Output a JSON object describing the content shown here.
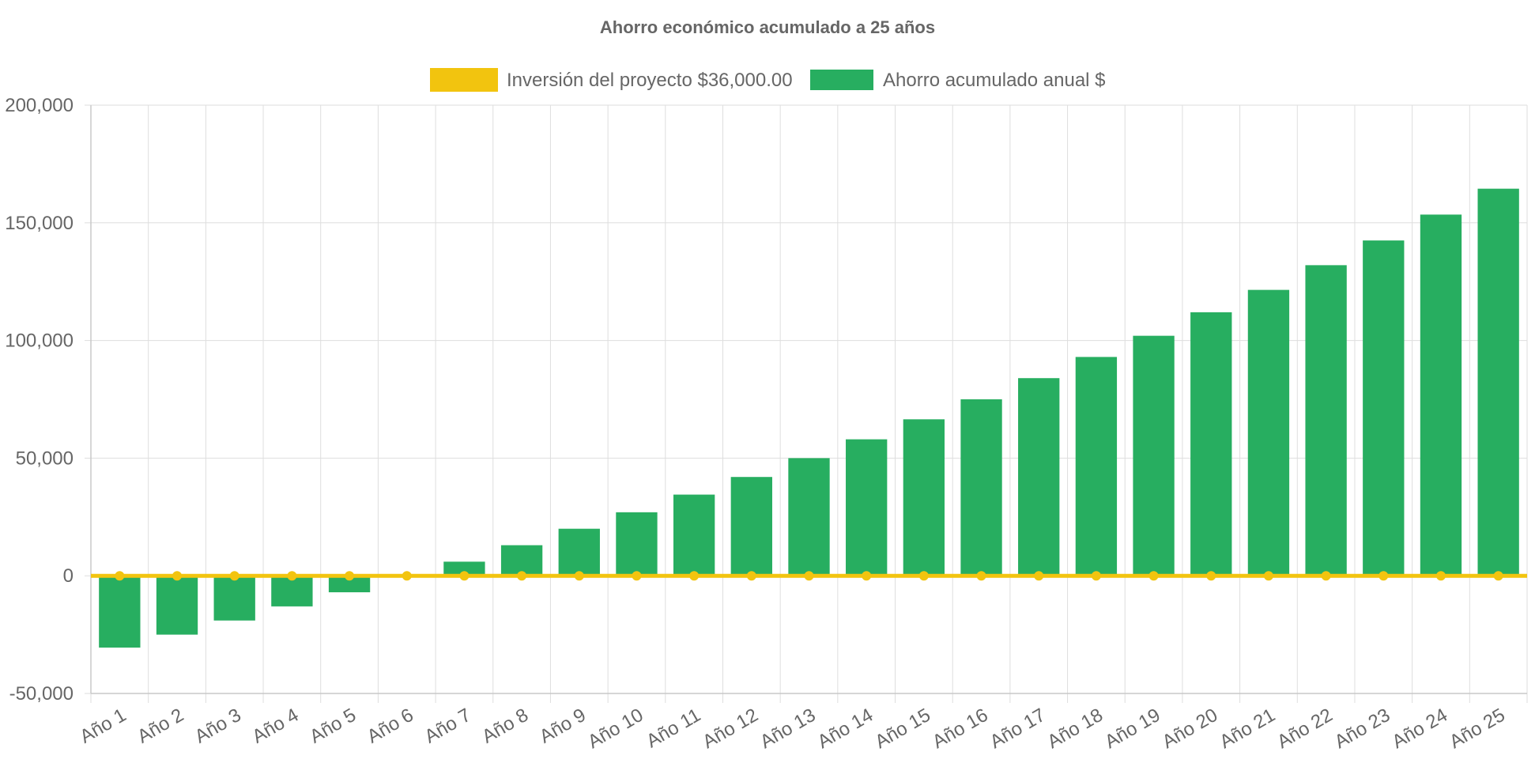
{
  "chart_data": {
    "type": "bar",
    "title": "Ahorro económico acumulado a 25 años",
    "xlabel": "",
    "ylabel": "",
    "ylim": [
      -50000,
      200000
    ],
    "yticks": [
      "200,000",
      "150,000",
      "100,000",
      "50,000",
      "0",
      "-50,000"
    ],
    "ytick_values": [
      200000,
      150000,
      100000,
      50000,
      0,
      -50000
    ],
    "grid": true,
    "legend_position": "top-center",
    "categories": [
      "Año 1",
      "Año 2",
      "Año 3",
      "Año 4",
      "Año 5",
      "Año 6",
      "Año 7",
      "Año 8",
      "Año 9",
      "Año 10",
      "Año 11",
      "Año 12",
      "Año 13",
      "Año 14",
      "Año 15",
      "Año 16",
      "Año 17",
      "Año 18",
      "Año 19",
      "Año 20",
      "Año 21",
      "Año 22",
      "Año 23",
      "Año 24",
      "Año 25"
    ],
    "series": [
      {
        "name": "Inversión del proyecto $36,000.00",
        "type": "line",
        "color": "#f2c40f",
        "values": [
          0,
          0,
          0,
          0,
          0,
          0,
          0,
          0,
          0,
          0,
          0,
          0,
          0,
          0,
          0,
          0,
          0,
          0,
          0,
          0,
          0,
          0,
          0,
          0,
          0
        ]
      },
      {
        "name": "Ahorro acumulado anual $",
        "type": "bar",
        "color": "#27ae60",
        "values": [
          -30500,
          -25000,
          -19000,
          -13000,
          -7000,
          -500,
          6000,
          13000,
          20000,
          27000,
          34500,
          42000,
          50000,
          58000,
          66500,
          75000,
          84000,
          93000,
          102000,
          112000,
          121500,
          132000,
          142500,
          153500,
          164500
        ]
      }
    ]
  }
}
